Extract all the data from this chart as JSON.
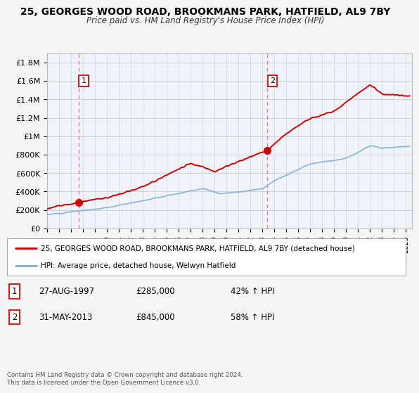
{
  "title": "25, GEORGES WOOD ROAD, BROOKMANS PARK, HATFIELD, AL9 7BY",
  "subtitle": "Price paid vs. HM Land Registry's House Price Index (HPI)",
  "ylabel_ticks": [
    "£0",
    "£200K",
    "£400K",
    "£600K",
    "£800K",
    "£1M",
    "£1.2M",
    "£1.4M",
    "£1.6M",
    "£1.8M"
  ],
  "ytick_vals": [
    0,
    200000,
    400000,
    600000,
    800000,
    1000000,
    1200000,
    1400000,
    1600000,
    1800000
  ],
  "ylim": [
    0,
    1900000
  ],
  "xlim_start": 1995.0,
  "xlim_end": 2025.5,
  "sale1_x": 1997.65,
  "sale1_y": 285000,
  "sale1_label": "1",
  "sale1_date": "27-AUG-1997",
  "sale1_price": "£285,000",
  "sale1_hpi": "42% ↑ HPI",
  "sale2_x": 2013.42,
  "sale2_y": 845000,
  "sale2_label": "2",
  "sale2_date": "31-MAY-2013",
  "sale2_price": "£845,000",
  "sale2_hpi": "58% ↑ HPI",
  "red_color": "#cc0000",
  "blue_color": "#7bafd4",
  "vline_color": "#e87070",
  "background_color": "#f5f5f5",
  "plot_bg": "#f0f4fa",
  "legend_line1": "25, GEORGES WOOD ROAD, BROOKMANS PARK, HATFIELD, AL9 7BY (detached house)",
  "legend_line2": "HPI: Average price, detached house, Welwyn Hatfield",
  "footer": "Contains HM Land Registry data © Crown copyright and database right 2024.\nThis data is licensed under the Open Government Licence v3.0.",
  "xtick_years": [
    1995,
    1996,
    1997,
    1998,
    1999,
    2000,
    2001,
    2002,
    2003,
    2004,
    2005,
    2006,
    2007,
    2008,
    2009,
    2010,
    2011,
    2012,
    2013,
    2014,
    2015,
    2016,
    2017,
    2018,
    2019,
    2020,
    2021,
    2022,
    2023,
    2024,
    2025
  ]
}
